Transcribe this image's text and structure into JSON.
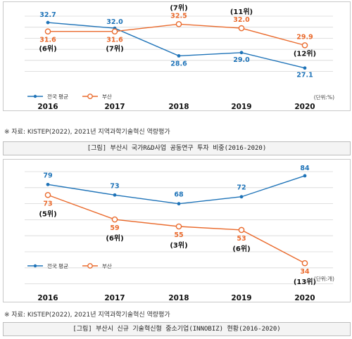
{
  "colors": {
    "national": "#1e73b8",
    "busan": "#ea6a2c"
  },
  "chart_data": [
    {
      "type": "line",
      "categories": [
        "2016",
        "2017",
        "2018",
        "2019",
        "2020"
      ],
      "ylim": [
        25,
        34
      ],
      "grid": true,
      "legend_position": "bottom-left",
      "unit": "(단위:%)",
      "series": [
        {
          "name": "전국 평균",
          "values": [
            32.7,
            32.0,
            28.6,
            29.0,
            27.1
          ],
          "labels": [
            "32.7",
            "32.0",
            "28.6",
            "29.0",
            "27.1"
          ]
        },
        {
          "name": "부산",
          "values": [
            31.6,
            31.6,
            32.5,
            32.0,
            29.9
          ],
          "labels": [
            "31.6",
            "31.6",
            "32.5",
            "32.0",
            "29.9"
          ],
          "ranks": [
            "(6위)",
            "(7위)",
            "(7위)",
            "(11위)",
            "(12위)"
          ]
        }
      ]
    },
    {
      "type": "line",
      "categories": [
        "2016",
        "2017",
        "2018",
        "2019",
        "2020"
      ],
      "ylim": [
        20,
        90
      ],
      "grid": true,
      "legend_position": "bottom-left",
      "unit": "(단위:개)",
      "series": [
        {
          "name": "전국 평균",
          "values": [
            79,
            73,
            68,
            72,
            84
          ],
          "labels": [
            "79",
            "73",
            "68",
            "72",
            "84"
          ]
        },
        {
          "name": "부산",
          "values": [
            73,
            59,
            55,
            53,
            34
          ],
          "labels": [
            "73",
            "59",
            "55",
            "53",
            "34"
          ],
          "ranks": [
            "(5위)",
            "(6위)",
            "(3위)",
            "(6위)",
            "(13위)"
          ]
        }
      ]
    }
  ],
  "source1": "※ 자료: KISTEP(2022), 2021년 지역과학기술혁신 역량평가",
  "caption1": "[그림] 부산시 국가R&D사업 공동연구 투자 비중(2016-2020)",
  "source2": "※ 자료: KISTEP(2022), 2021년 지역과학기술혁신 역량평가",
  "caption2": "[그림] 부산시 신규 기술혁신형 중소기업(INNOBIZ) 현황(2016-2020)"
}
